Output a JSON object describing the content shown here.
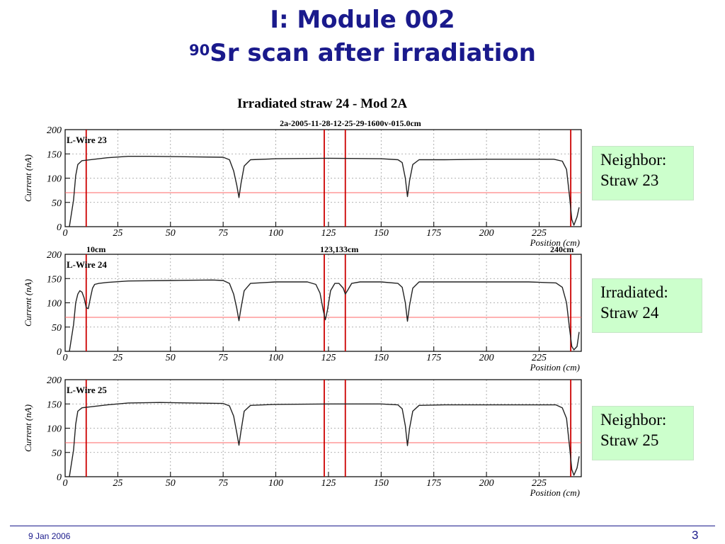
{
  "slide": {
    "title_line1": "I: Module 002",
    "title_sup": "90",
    "title_line2": "Sr scan after irradiation",
    "footer_date": "9 Jan 2006",
    "page_number": "3"
  },
  "boxes": [
    {
      "line1": "Neighbor:",
      "line2": "Straw 23"
    },
    {
      "line1": "Irradiated:",
      "line2": "Straw 24"
    },
    {
      "line1": "Neighbor:",
      "line2": "Straw 25"
    }
  ],
  "colors": {
    "title": "#1a1a8c",
    "box_bg": "#ccffcc",
    "marker": "#cc0000",
    "threshold": "#ff6666",
    "trace": "#222222"
  },
  "figure": {
    "title": "Irradiated straw 24 - Mod 2A",
    "subtitle": "2a-2005-11-28-12-25-29-1600v-015.0cm",
    "marker_labels": [
      "10cm",
      "123,133cm",
      "240cm"
    ]
  },
  "chart_data": [
    {
      "type": "line",
      "label": "L-Wire 23",
      "xlabel": "Position (cm)",
      "ylabel": "Current (nA)",
      "xlim": [
        0,
        245
      ],
      "ylim": [
        0,
        200
      ],
      "xticks": [
        0,
        25,
        50,
        75,
        100,
        125,
        150,
        175,
        200,
        225
      ],
      "yticks": [
        0,
        50,
        100,
        150,
        200
      ],
      "grid": true,
      "threshold": 70,
      "markers": [
        10,
        123,
        133,
        240
      ],
      "x": [
        2,
        4,
        5,
        6,
        8,
        10,
        20,
        30,
        40,
        60,
        75,
        78,
        80,
        81.5,
        82.5,
        83.5,
        85,
        88,
        100,
        125,
        150,
        158,
        160,
        161.5,
        162.5,
        163.5,
        165,
        168,
        180,
        200,
        220,
        232,
        236,
        238,
        239.5,
        240.5,
        241.5,
        243,
        244
      ],
      "y": [
        0,
        55,
        105,
        128,
        136,
        137,
        142,
        145,
        145,
        144,
        143,
        138,
        115,
        85,
        60,
        90,
        125,
        138,
        140,
        141,
        140,
        138,
        132,
        100,
        62,
        95,
        128,
        138,
        138,
        139,
        139,
        139,
        135,
        118,
        60,
        15,
        3,
        20,
        40
      ]
    },
    {
      "type": "line",
      "label": "L-Wire 24",
      "xlabel": "Position (cm)",
      "ylabel": "Current (nA)",
      "xlim": [
        0,
        245
      ],
      "ylim": [
        0,
        200
      ],
      "xticks": [
        0,
        25,
        50,
        75,
        100,
        125,
        150,
        175,
        200,
        225
      ],
      "yticks": [
        0,
        50,
        100,
        150,
        200
      ],
      "grid": true,
      "threshold": 70,
      "markers": [
        10,
        123,
        133,
        240
      ],
      "x": [
        2,
        4,
        5,
        6,
        7,
        8,
        9,
        10,
        11,
        12,
        13,
        14,
        16,
        20,
        30,
        50,
        70,
        75,
        78,
        80,
        81.5,
        82.5,
        83.5,
        85,
        88,
        100,
        115,
        119,
        121,
        122.5,
        123.5,
        124.5,
        126,
        128,
        130,
        132,
        133,
        134,
        136,
        140,
        150,
        158,
        160,
        161.5,
        162.5,
        163.5,
        165,
        168,
        180,
        200,
        220,
        233,
        236,
        238,
        239.5,
        240.5,
        241.5,
        243,
        244
      ],
      "y": [
        0,
        55,
        100,
        118,
        125,
        122,
        110,
        90,
        88,
        110,
        130,
        138,
        140,
        142,
        145,
        146,
        147,
        146,
        140,
        118,
        88,
        63,
        90,
        125,
        140,
        143,
        143,
        138,
        120,
        85,
        65,
        85,
        125,
        140,
        140,
        130,
        118,
        125,
        140,
        143,
        143,
        140,
        132,
        100,
        62,
        95,
        130,
        143,
        143,
        143,
        143,
        141,
        132,
        100,
        45,
        10,
        3,
        10,
        40
      ]
    },
    {
      "type": "line",
      "label": "L-Wire 25",
      "xlabel": "Position (cm)",
      "ylabel": "Current (nA)",
      "xlim": [
        0,
        245
      ],
      "ylim": [
        0,
        200
      ],
      "xticks": [
        0,
        25,
        50,
        75,
        100,
        125,
        150,
        175,
        200,
        225
      ],
      "yticks": [
        0,
        50,
        100,
        150,
        200
      ],
      "grid": true,
      "threshold": 70,
      "markers": [
        10,
        123,
        133,
        240
      ],
      "x": [
        2,
        4,
        5,
        6,
        8,
        10,
        20,
        30,
        45,
        60,
        75,
        78,
        80,
        81.5,
        82.5,
        83.5,
        85,
        88,
        100,
        125,
        150,
        158,
        160,
        161.5,
        162.5,
        163.5,
        165,
        168,
        180,
        200,
        220,
        233,
        236,
        238,
        239.5,
        240.5,
        241.5,
        243,
        244
      ],
      "y": [
        0,
        55,
        108,
        135,
        142,
        143,
        148,
        152,
        153,
        152,
        151,
        146,
        125,
        90,
        65,
        95,
        135,
        147,
        149,
        150,
        150,
        148,
        140,
        105,
        64,
        100,
        135,
        147,
        148,
        148,
        148,
        148,
        142,
        120,
        60,
        15,
        3,
        18,
        42
      ]
    }
  ]
}
